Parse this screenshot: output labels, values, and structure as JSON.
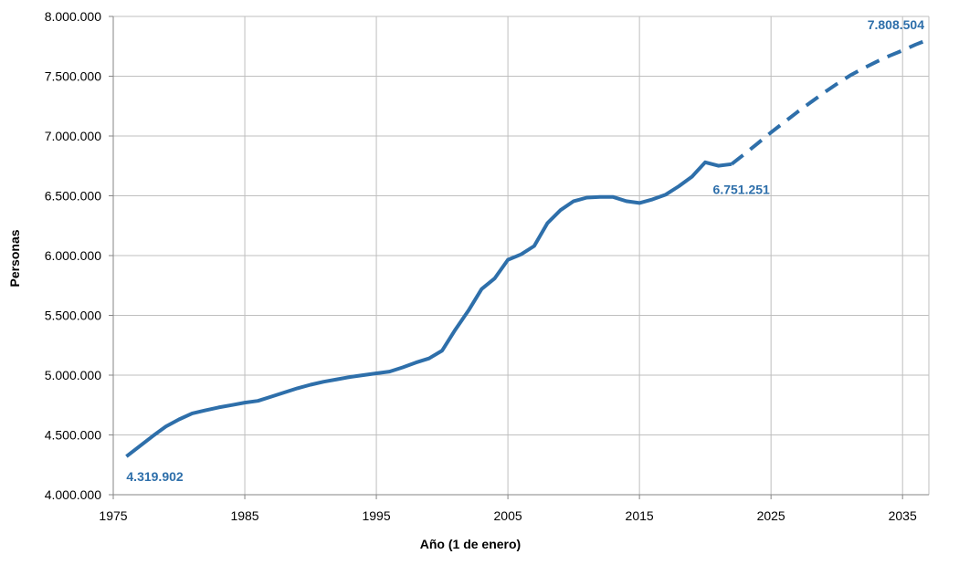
{
  "chart_data": {
    "type": "line",
    "title": "",
    "xlabel": "Año (1 de enero)",
    "ylabel": "Personas",
    "xlim": [
      1975,
      2037
    ],
    "ylim": [
      4000000,
      8000000
    ],
    "x_ticks": [
      1975,
      1985,
      1995,
      2005,
      2015,
      2025,
      2035
    ],
    "x_tick_labels": [
      "1975",
      "1985",
      "1995",
      "2005",
      "2015",
      "2025",
      "2035"
    ],
    "y_ticks": [
      4000000,
      4500000,
      5000000,
      5500000,
      6000000,
      6500000,
      7000000,
      7500000,
      8000000
    ],
    "y_tick_labels": [
      "4.000.000",
      "4.500.000",
      "5.000.000",
      "5.500.000",
      "6.000.000",
      "6.500.000",
      "7.000.000",
      "7.500.000",
      "8.000.000"
    ],
    "grid": true,
    "legend": "none",
    "series": [
      {
        "style": "solid",
        "color": "#2e6faa",
        "x": [
          1976,
          1977,
          1978,
          1979,
          1980,
          1981,
          1982,
          1983,
          1984,
          1985,
          1986,
          1987,
          1988,
          1989,
          1990,
          1991,
          1992,
          1993,
          1994,
          1995,
          1996,
          1997,
          1998,
          1999,
          2000,
          2001,
          2002,
          2003,
          2004,
          2005,
          2006,
          2007,
          2008,
          2009,
          2010,
          2011,
          2012,
          2013,
          2014,
          2015,
          2016,
          2017,
          2018,
          2019,
          2020,
          2021,
          2022
        ],
        "values": [
          4319902,
          4405000,
          4490000,
          4570000,
          4630000,
          4680000,
          4705000,
          4730000,
          4750000,
          4770000,
          4785000,
          4820000,
          4855000,
          4890000,
          4920000,
          4945000,
          4965000,
          4985000,
          5000000,
          5015000,
          5030000,
          5065000,
          5105000,
          5140000,
          5205000,
          5380000,
          5540000,
          5720000,
          5810000,
          5965000,
          6010000,
          6080000,
          6270000,
          6380000,
          6455000,
          6485000,
          6490000,
          6490000,
          6455000,
          6440000,
          6470000,
          6510000,
          6580000,
          6660000,
          6780000,
          6751251,
          6765000
        ]
      },
      {
        "style": "dashed",
        "color": "#2e6faa",
        "x": [
          2022,
          2023,
          2024,
          2025,
          2026,
          2027,
          2028,
          2029,
          2030,
          2031,
          2032,
          2033,
          2034,
          2035,
          2036,
          2037
        ],
        "values": [
          6765000,
          6850000,
          6940000,
          7030000,
          7115000,
          7200000,
          7280000,
          7360000,
          7435000,
          7505000,
          7565000,
          7620000,
          7670000,
          7715000,
          7765000,
          7808504
        ]
      }
    ],
    "annotations": [
      {
        "text": "4.319.902",
        "x": 1976,
        "y": 4319902,
        "anchor": "below"
      },
      {
        "text": "6.751.251",
        "x": 2021,
        "y": 6751251,
        "anchor": "below"
      },
      {
        "text": "7.808.504",
        "x": 2037,
        "y": 7808504,
        "anchor": "above"
      }
    ],
    "colors": {
      "line": "#2e6faa",
      "label": "#2e6faa",
      "grid": "#bfbfbf",
      "axis": "#868686"
    }
  }
}
